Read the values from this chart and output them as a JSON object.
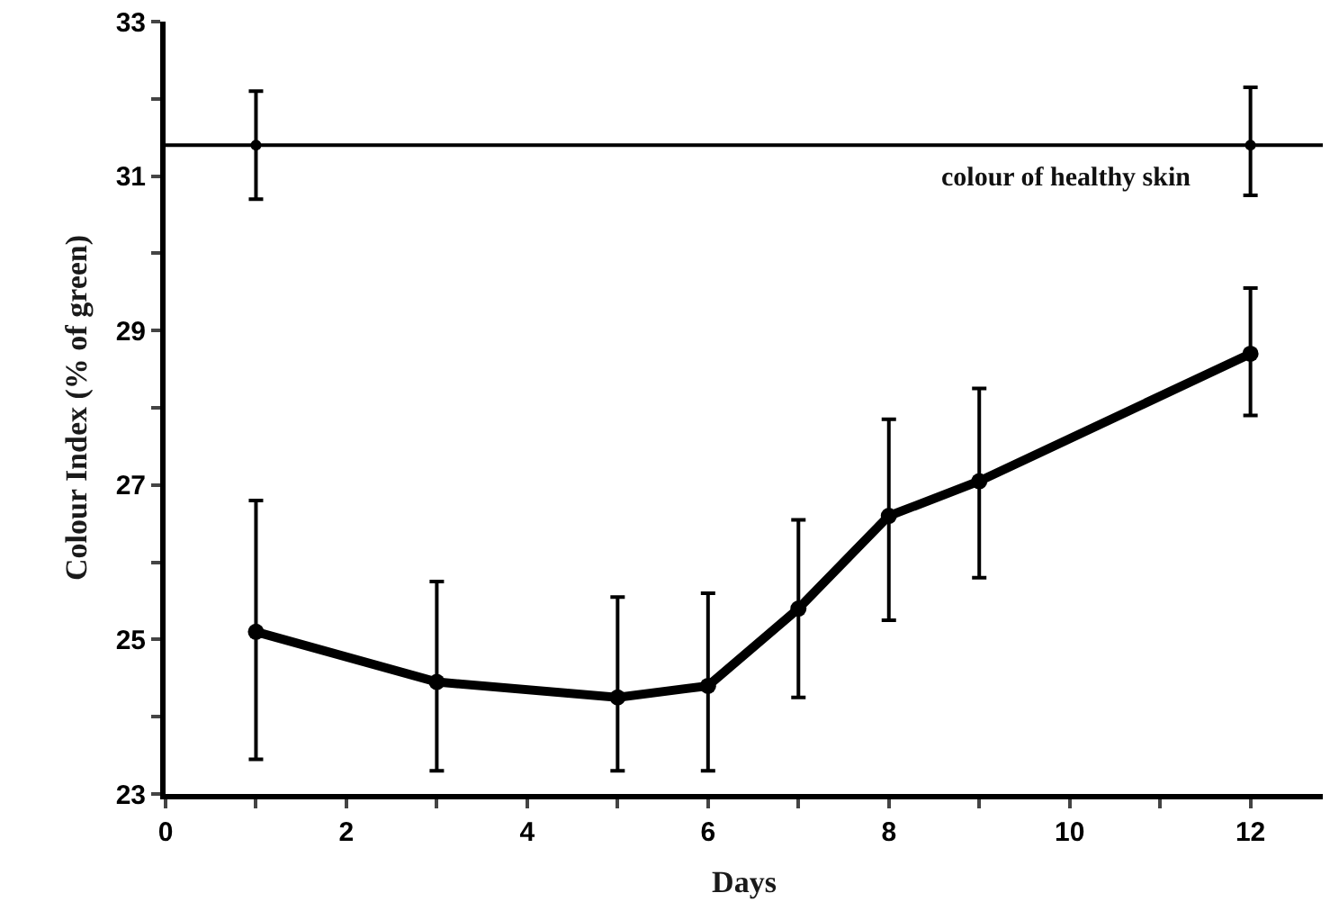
{
  "chart_data": {
    "type": "line",
    "xlabel": "Days",
    "ylabel": "Colour Index (% of green)",
    "xlim": [
      0,
      12.8
    ],
    "ylim": [
      23,
      33
    ],
    "xticks": [
      0,
      {
        "value": 1,
        "label": null
      },
      2,
      {
        "value": 3,
        "label": null
      },
      4,
      {
        "value": 5,
        "label": null
      },
      6,
      {
        "value": 7,
        "label": null
      },
      8,
      {
        "value": 9,
        "label": null
      },
      10,
      {
        "value": 11,
        "label": null
      },
      12
    ],
    "yticks": [
      23,
      {
        "value": 24,
        "label": null
      },
      25,
      {
        "value": 26,
        "label": null
      },
      27,
      {
        "value": 28,
        "label": null
      },
      29,
      {
        "value": 30,
        "label": null
      },
      31,
      {
        "value": 32,
        "label": null
      },
      33
    ],
    "series": [
      {
        "color": "#000000",
        "x": [
          1,
          3,
          5,
          6,
          7,
          8,
          9,
          12
        ],
        "values": [
          25.1,
          24.45,
          24.25,
          24.4,
          25.4,
          26.6,
          27.05,
          28.7
        ],
        "errors": [
          [
            23.45,
            26.8
          ],
          [
            23.3,
            25.75
          ],
          [
            23.3,
            25.55
          ],
          [
            23.3,
            25.6
          ],
          [
            24.25,
            26.55
          ],
          [
            25.25,
            27.85
          ],
          [
            25.8,
            28.25
          ],
          [
            27.9,
            29.55
          ]
        ],
        "marker": "circle",
        "line_style": "solid"
      },
      {
        "type": "scatter",
        "color": "#000000",
        "x": [
          1,
          12
        ],
        "values": [
          31.4,
          31.4
        ],
        "errors": [
          [
            30.7,
            32.1
          ],
          [
            30.75,
            32.15
          ]
        ],
        "marker": "circle"
      }
    ],
    "ref_lines": [
      {
        "axis": "y",
        "value": 31.4,
        "label": "colour of healthy skin",
        "color": "#000000"
      }
    ],
    "grid": false
  }
}
